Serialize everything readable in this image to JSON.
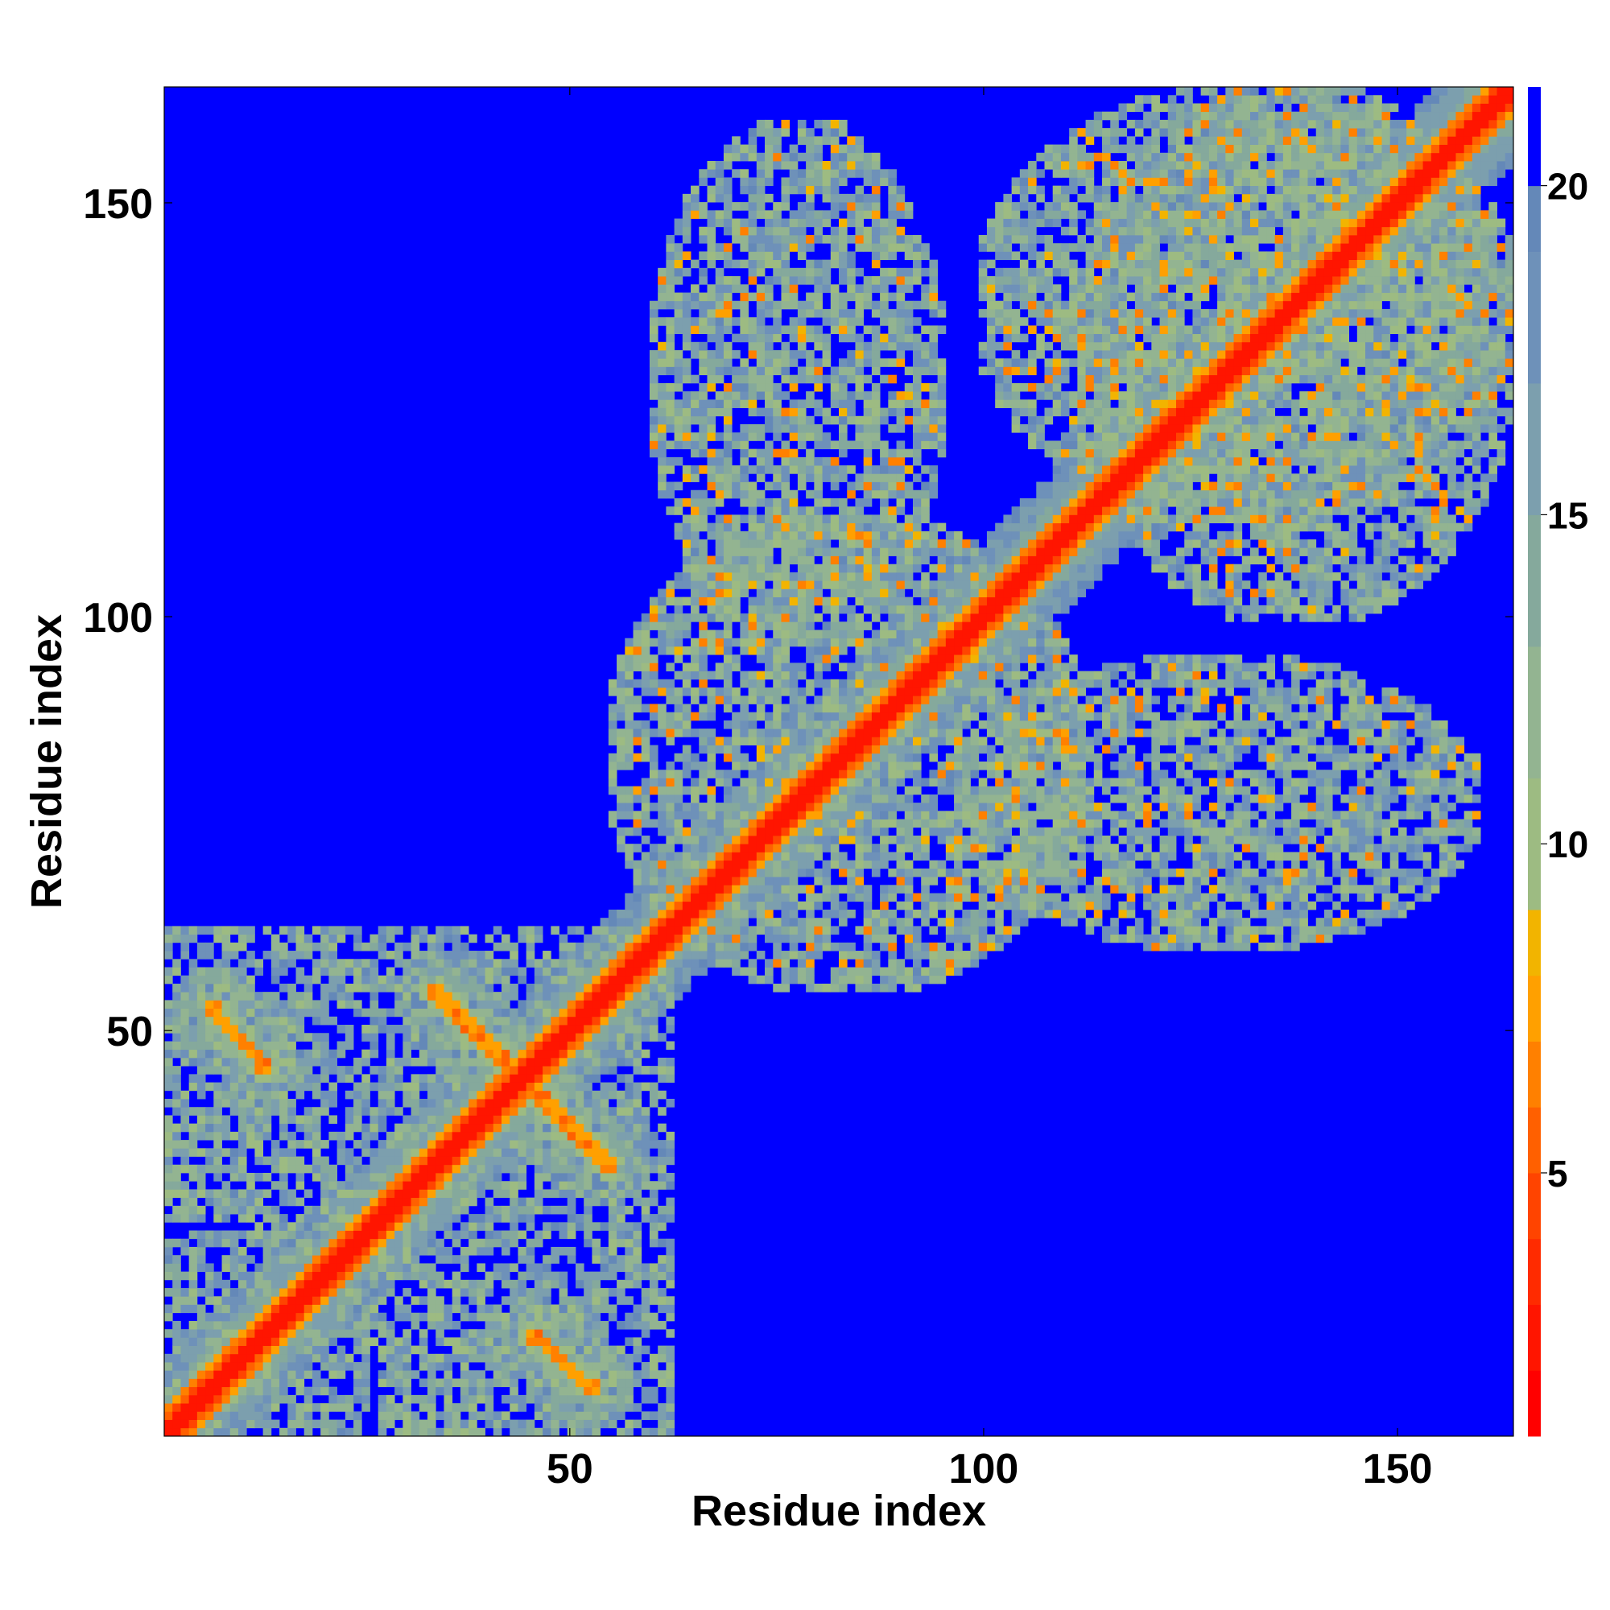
{
  "chart_data": {
    "type": "heatmap",
    "title": "",
    "xlabel": "Residue index",
    "ylabel": "Residue index",
    "xlim": [
      1,
      164
    ],
    "ylim": [
      1,
      164
    ],
    "x_ticks": [
      50,
      100,
      150
    ],
    "y_ticks": [
      50,
      100,
      150
    ],
    "colorbar": {
      "ticks": [
        5,
        10,
        15,
        20
      ],
      "range": [
        1,
        21.5
      ],
      "bands": [
        {
          "from": 1,
          "to": 2.0,
          "color": "#ff0000"
        },
        {
          "from": 2.0,
          "to": 3.0,
          "color": "#ff1500"
        },
        {
          "from": 3.0,
          "to": 4.0,
          "color": "#ff2b00"
        },
        {
          "from": 4.0,
          "to": 5.0,
          "color": "#ff4400"
        },
        {
          "from": 5.0,
          "to": 6.0,
          "color": "#ff6000"
        },
        {
          "from": 6.0,
          "to": 7.0,
          "color": "#ff8000"
        },
        {
          "from": 7.0,
          "to": 8.0,
          "color": "#ffa000"
        },
        {
          "from": 8.0,
          "to": 9.0,
          "color": "#f2b400"
        },
        {
          "from": 9.0,
          "to": 11.0,
          "color": "#9dbb82"
        },
        {
          "from": 11.0,
          "to": 13.0,
          "color": "#93b491"
        },
        {
          "from": 13.0,
          "to": 15.0,
          "color": "#85a99c"
        },
        {
          "from": 15.0,
          "to": 17.0,
          "color": "#7c9fae"
        },
        {
          "from": 17.0,
          "to": 19.0,
          "color": "#6e91b9"
        },
        {
          "from": 19.0,
          "to": 20.0,
          "color": "#6488b8"
        },
        {
          "from": 20.0,
          "to": 21.5,
          "color": "#0000ff"
        }
      ]
    },
    "value_meaning": "pairwise residue distance; values at or above the top band are shown in blue",
    "n_residues": 164,
    "contact_features": [
      {
        "kind": "diagonal",
        "description": "red main diagonal from residue 1 to 164"
      },
      {
        "kind": "antiparallel",
        "i_range": [
          6,
          13
        ],
        "j_range": [
          53,
          45
        ]
      },
      {
        "kind": "antiparallel",
        "i_range": [
          33,
          42
        ],
        "j_range": [
          55,
          46
        ]
      },
      {
        "kind": "antiparallel",
        "i_range": [
          46,
          55
        ],
        "j_range": [
          42,
          33
        ]
      },
      {
        "kind": "antiparallel",
        "i_range": [
          45,
          53
        ],
        "j_range": [
          13,
          6
        ]
      },
      {
        "kind": "cluster",
        "i_range": [
          55,
          112
        ],
        "j_range": [
          55,
          112
        ]
      },
      {
        "kind": "cluster",
        "i_range": [
          60,
          95
        ],
        "j_range": [
          98,
          160
        ]
      },
      {
        "kind": "cluster",
        "i_range": [
          98,
          160
        ],
        "j_range": [
          60,
          95
        ]
      },
      {
        "kind": "cluster",
        "i_range": [
          100,
          164
        ],
        "j_range": [
          112,
          164
        ]
      },
      {
        "kind": "cluster",
        "i_range": [
          112,
          164
        ],
        "j_range": [
          100,
          164
        ]
      }
    ],
    "colors": {
      "background": "#0000ff"
    }
  }
}
